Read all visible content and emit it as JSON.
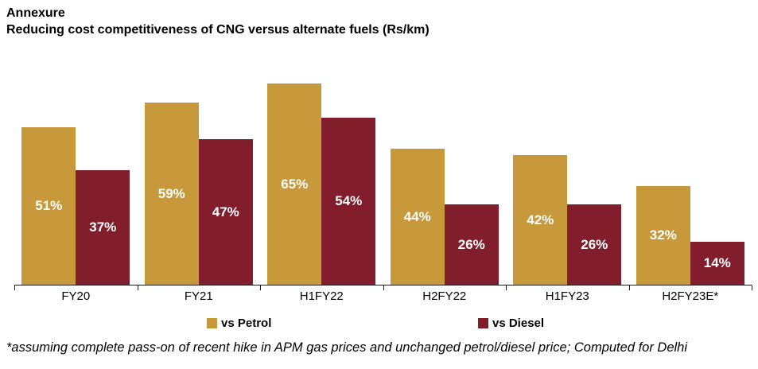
{
  "header": {
    "annexure": "Annexure",
    "title": "Reducing cost competitiveness of CNG versus alternate fuels (Rs/km)"
  },
  "chart_data": {
    "type": "bar",
    "title": "Reducing cost competitiveness of CNG versus alternate fuels (Rs/km)",
    "categories": [
      "FY20",
      "FY21",
      "H1FY22",
      "H2FY22",
      "H1FY23",
      "H2FY23E*"
    ],
    "series": [
      {
        "name": "vs Petrol",
        "color": "#C8993A",
        "values": [
          51,
          59,
          65,
          44,
          42,
          32
        ]
      },
      {
        "name": "vs Diesel",
        "color": "#821E2B",
        "values": [
          37,
          47,
          54,
          26,
          26,
          14
        ]
      }
    ],
    "value_suffix": "%",
    "xlabel": "",
    "ylabel": "",
    "ylim": [
      0,
      70
    ],
    "grid": false,
    "legend_position": "bottom",
    "data_labels": "inside-center-white-bold"
  },
  "footnote": "*assuming complete pass-on of recent hike in APM gas prices and unchanged petrol/diesel price; Computed for Delhi",
  "colors": {
    "petrol": "#C8993A",
    "diesel": "#821E2B",
    "axis": "#1a1a1a",
    "bar_label_text": "#FFFFFF",
    "background": "#FFFFFF"
  }
}
